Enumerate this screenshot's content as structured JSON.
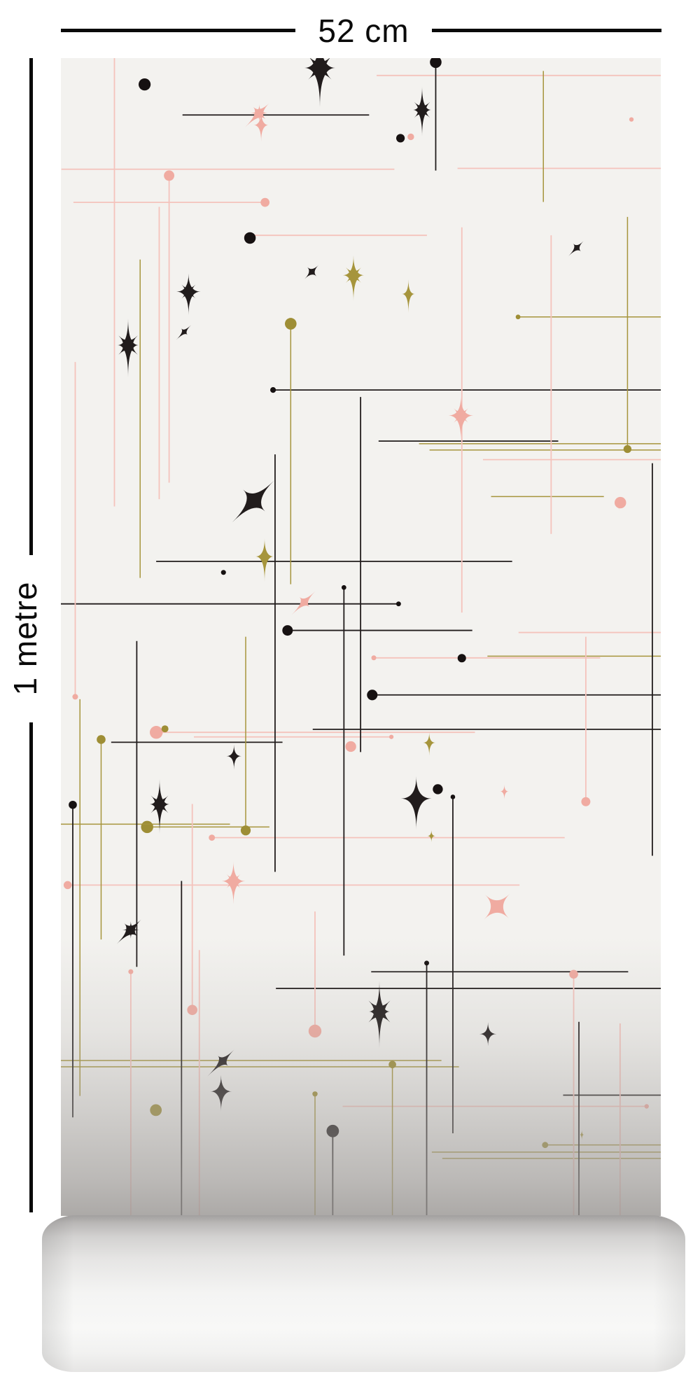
{
  "mockup": {
    "width_label": "52 cm",
    "height_label": "1 metre",
    "annotation_color": "#0a0a0a"
  },
  "pattern": {
    "background": "#f3f2ef",
    "colors": {
      "black": "#211c1c",
      "black_dot": "#161111",
      "gold": "#a6953c",
      "gold_dot": "#9e8e35",
      "pink_line": "#f4c3bc",
      "pink": "#f0aba1"
    },
    "motifs": [
      "grid-lines",
      "four-point-star",
      "eight-point-starburst",
      "x-sparkle",
      "end-dots"
    ]
  }
}
